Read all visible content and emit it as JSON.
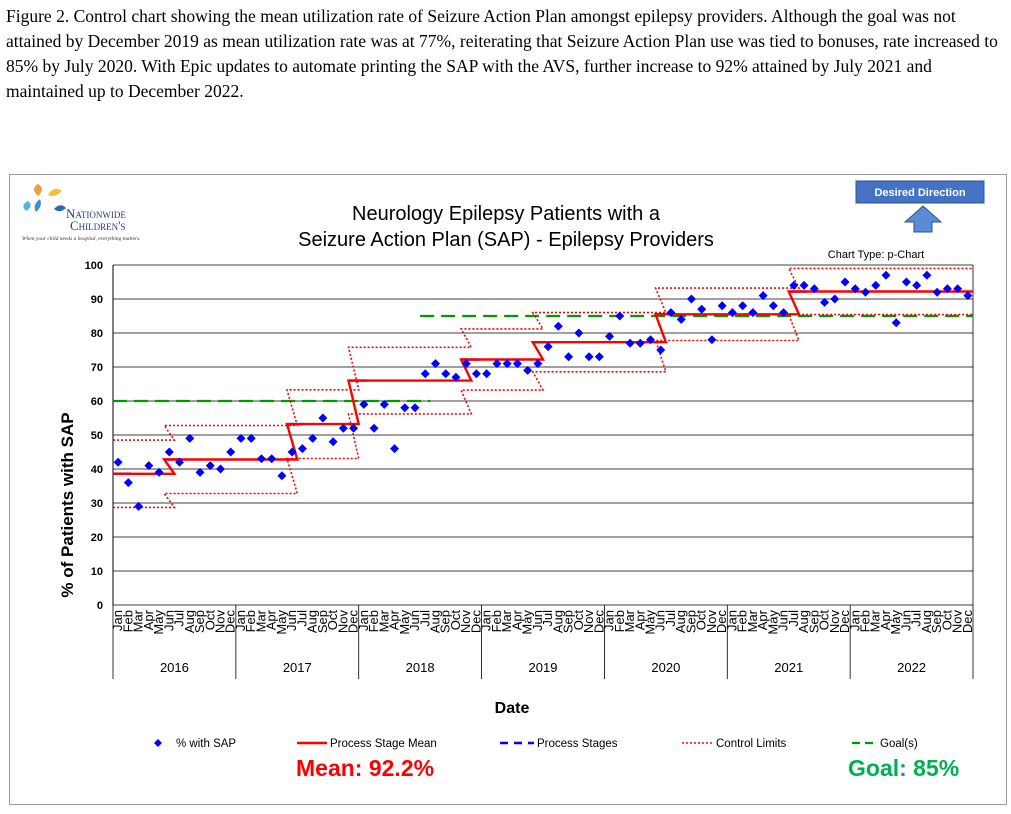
{
  "caption": "Figure 2. Control chart showing the mean utilization rate of Seizure Action Plan amongst epilepsy providers. Although the goal was not attained by December 2019 as mean utilization rate was at 77%, reiterating that Seizure Action Plan use was tied to bonuses, rate increased to 85% by July 2020. With Epic updates to automate printing the SAP with the AVS, further increase to 92% attained by July 2021 and maintained up to December 2022.",
  "logo": {
    "line1": "Nationwide",
    "line2": "Children's",
    "tagline": "When your child needs a hospital, everything matters."
  },
  "desired_direction": {
    "label": "Desired Direction",
    "icon": "up-arrow-icon"
  },
  "chart_type_label": "Chart Type: p-Chart",
  "mean_label": "Mean: 92.2%",
  "goal_label": "Goal: 85%",
  "colors": {
    "points": "#0000ff",
    "stage_mean": "#ff0000",
    "stages": "#0000ff",
    "control_limits": "#ff0000",
    "goal": "#009900",
    "direction_box": "#4472c4",
    "mean_text": "#ff0000",
    "goal_text": "#00b050"
  },
  "chart_data": {
    "type": "line",
    "title": "Neurology Epilepsy Patients with a Seizure Action Plan (SAP) - Epilepsy Providers",
    "xlabel": "Date",
    "ylabel": "% of Patients with SAP",
    "ylim": [
      0,
      100
    ],
    "yticks": [
      0,
      10,
      20,
      30,
      40,
      50,
      60,
      70,
      80,
      90,
      100
    ],
    "grid": true,
    "legend_position": "bottom",
    "years": [
      "2016",
      "2017",
      "2018",
      "2019",
      "2020",
      "2021",
      "2022"
    ],
    "months": [
      "Jan",
      "Feb",
      "Mar",
      "Apr",
      "May",
      "Jun",
      "Jul",
      "Aug",
      "Sep",
      "Oct",
      "Nov",
      "Dec"
    ],
    "legend": [
      {
        "key": "points",
        "label": "% with SAP"
      },
      {
        "key": "mean",
        "label": "Process Stage Mean"
      },
      {
        "key": "stages",
        "label": "Process Stages"
      },
      {
        "key": "limits",
        "label": "Control Limits"
      },
      {
        "key": "goal",
        "label": "Goal(s)"
      }
    ],
    "series": [
      {
        "name": "% with SAP",
        "values": [
          42,
          36,
          29,
          41,
          39,
          45,
          42,
          49,
          39,
          41,
          40,
          45,
          49,
          49,
          43,
          43,
          38,
          45,
          46,
          49,
          55,
          48,
          52,
          52,
          59,
          52,
          59,
          46,
          58,
          58,
          68,
          71,
          68,
          67,
          71,
          68,
          68,
          71,
          71,
          71,
          69,
          71,
          76,
          82,
          73,
          80,
          73,
          73,
          79,
          85,
          77,
          77,
          78,
          75,
          86,
          84,
          90,
          87,
          78,
          88,
          86,
          88,
          86,
          91,
          88,
          86,
          94,
          94,
          93,
          89,
          90,
          95,
          93,
          92,
          94,
          97,
          83,
          95,
          94,
          97,
          92,
          93,
          93,
          91
        ]
      }
    ],
    "process_stages": [
      {
        "start": 0,
        "end": 5,
        "mean": 38.6,
        "ucl": 48.5,
        "lcl": 28.7
      },
      {
        "start": 5,
        "end": 17,
        "mean": 42.8,
        "ucl": 52.8,
        "lcl": 32.8
      },
      {
        "start": 17,
        "end": 23,
        "mean": 53.2,
        "ucl": 63.3,
        "lcl": 43.1
      },
      {
        "start": 23,
        "end": 34,
        "mean": 66.0,
        "ucl": 75.8,
        "lcl": 56.2
      },
      {
        "start": 34,
        "end": 41,
        "mean": 72.2,
        "ucl": 81.2,
        "lcl": 63.2
      },
      {
        "start": 41,
        "end": 53,
        "mean": 77.3,
        "ucl": 86.0,
        "lcl": 68.6
      },
      {
        "start": 53,
        "end": 66,
        "mean": 85.5,
        "ucl": 93.2,
        "lcl": 77.8
      },
      {
        "start": 66,
        "end": 83,
        "mean": 92.2,
        "ucl": 99.0,
        "lcl": 85.4
      }
    ],
    "goals": [
      {
        "start": 0,
        "end": 30,
        "value": 60
      },
      {
        "start": 30,
        "end": 83,
        "value": 85
      }
    ]
  }
}
